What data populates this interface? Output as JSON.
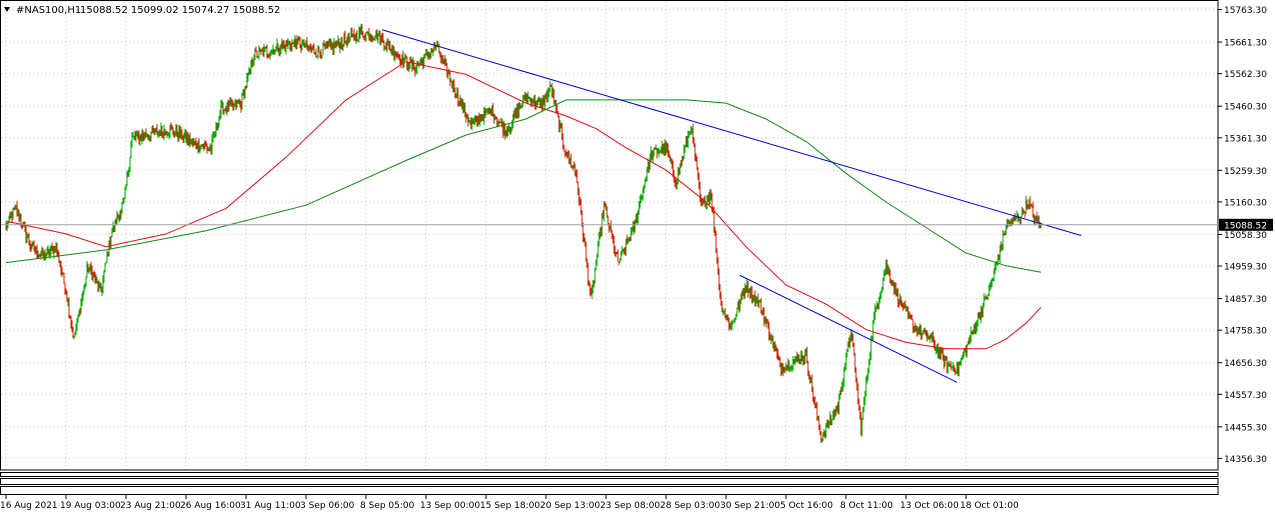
{
  "header": {
    "arrow_icon": "triangle-down-icon",
    "symbol": "#NAS100,H1",
    "ohlc": "15088.52 15099.02 15074.27 15088.52"
  },
  "price_marker": {
    "label": "15088.52"
  },
  "colors": {
    "background": "#ffffff",
    "frame": "#000000",
    "grid": "#c0c0c0",
    "bull_candle": "#00aa00",
    "bear_candle": "#cc2200",
    "ma_fast": "#dd1111",
    "ma_slow": "#108a10",
    "trendline": "#0000cc",
    "price_line": "#a0a0a0",
    "price_label_bg": "#000000",
    "price_label_text": "#ffffff"
  },
  "chart_data": {
    "type": "candlestick",
    "title": "#NAS100,H1",
    "y_axis": {
      "ylim": [
        14320,
        15790
      ],
      "tick_labels": [
        "15763.30",
        "15661.30",
        "15562.30",
        "15460.30",
        "15361.30",
        "15259.30",
        "15160.30",
        "15058.30",
        "14959.30",
        "14857.30",
        "14758.30",
        "14656.30",
        "14557.30",
        "14455.30",
        "14356.30"
      ],
      "tick_values": [
        15763.3,
        15661.3,
        15562.3,
        15460.3,
        15361.3,
        15259.3,
        15160.3,
        15058.3,
        14959.3,
        14857.3,
        14758.3,
        14656.3,
        14557.3,
        14455.3,
        14356.3
      ]
    },
    "x_axis": {
      "tick_labels": [
        "16 Aug 2021",
        "19 Aug 03:00",
        "23 Aug 21:00",
        "26 Aug 16:00",
        "31 Aug 11:00",
        "3 Sep 06:00",
        "8 Sep 05:00",
        "13 Sep 00:00",
        "15 Sep 18:00",
        "20 Sep 13:00",
        "23 Sep 08:00",
        "28 Sep 03:00",
        "30 Sep 21:00",
        "5 Oct 16:00",
        "8 Oct 11:00",
        "13 Oct 06:00",
        "18 Oct 01:00"
      ],
      "bars_per_label": 60
    },
    "grid": true,
    "last_price": 15088.52,
    "close_anchors": [
      [
        0,
        15080
      ],
      [
        10,
        15140
      ],
      [
        25,
        15020
      ],
      [
        38,
        14990
      ],
      [
        50,
        15020
      ],
      [
        60,
        14880
      ],
      [
        68,
        14730
      ],
      [
        82,
        14960
      ],
      [
        95,
        14880
      ],
      [
        105,
        15060
      ],
      [
        118,
        15160
      ],
      [
        126,
        15360
      ],
      [
        140,
        15370
      ],
      [
        165,
        15390
      ],
      [
        190,
        15340
      ],
      [
        205,
        15330
      ],
      [
        215,
        15450
      ],
      [
        235,
        15470
      ],
      [
        248,
        15620
      ],
      [
        268,
        15640
      ],
      [
        290,
        15660
      ],
      [
        312,
        15630
      ],
      [
        335,
        15660
      ],
      [
        355,
        15690
      ],
      [
        372,
        15680
      ],
      [
        395,
        15610
      ],
      [
        410,
        15580
      ],
      [
        430,
        15650
      ],
      [
        450,
        15500
      ],
      [
        465,
        15400
      ],
      [
        485,
        15450
      ],
      [
        500,
        15380
      ],
      [
        520,
        15490
      ],
      [
        535,
        15460
      ],
      [
        545,
        15520
      ],
      [
        558,
        15330
      ],
      [
        570,
        15250
      ],
      [
        585,
        14850
      ],
      [
        598,
        15150
      ],
      [
        612,
        14970
      ],
      [
        628,
        15080
      ],
      [
        645,
        15310
      ],
      [
        660,
        15330
      ],
      [
        670,
        15220
      ],
      [
        685,
        15400
      ],
      [
        695,
        15150
      ],
      [
        705,
        15190
      ],
      [
        715,
        14840
      ],
      [
        725,
        14770
      ],
      [
        740,
        14900
      ],
      [
        755,
        14830
      ],
      [
        775,
        14640
      ],
      [
        800,
        14680
      ],
      [
        815,
        14420
      ],
      [
        832,
        14520
      ],
      [
        845,
        14760
      ],
      [
        855,
        14450
      ],
      [
        868,
        14800
      ],
      [
        880,
        14960
      ],
      [
        892,
        14860
      ],
      [
        910,
        14760
      ],
      [
        925,
        14730
      ],
      [
        940,
        14650
      ],
      [
        952,
        14640
      ],
      [
        965,
        14740
      ],
      [
        985,
        14900
      ],
      [
        1000,
        15080
      ],
      [
        1015,
        15120
      ],
      [
        1022,
        15160
      ],
      [
        1030,
        15100
      ],
      [
        1035,
        15088.52
      ]
    ],
    "series": [
      {
        "type": "line",
        "x_bar": [
          0,
          60,
          100,
          160,
          220,
          280,
          340,
          400,
          460,
          520,
          560,
          590,
          620,
          660,
          700,
          740,
          780,
          820,
          860,
          900,
          940,
          980,
          1000,
          1020,
          1035
        ],
        "values": [
          15100,
          15060,
          15020,
          15060,
          15140,
          15300,
          15480,
          15600,
          15560,
          15470,
          15430,
          15390,
          15330,
          15260,
          15160,
          15020,
          14900,
          14840,
          14760,
          14720,
          14700,
          14700,
          14730,
          14780,
          14830
        ]
      },
      {
        "type": "line",
        "x_bar": [
          0,
          100,
          200,
          300,
          400,
          460,
          520,
          560,
          600,
          640,
          680,
          720,
          760,
          800,
          840,
          880,
          920,
          960,
          1000,
          1035
        ],
        "values": [
          14970,
          15010,
          15070,
          15150,
          15290,
          15370,
          15420,
          15480,
          15480,
          15480,
          15480,
          15470,
          15420,
          15350,
          15250,
          15160,
          15080,
          15000,
          14960,
          14940
        ]
      }
    ],
    "trendlines": [
      {
        "from": [
          376,
          15700
        ],
        "to": [
          1075,
          15055
        ]
      },
      {
        "from": [
          734,
          14930
        ],
        "to": [
          951,
          14595
        ]
      }
    ]
  }
}
